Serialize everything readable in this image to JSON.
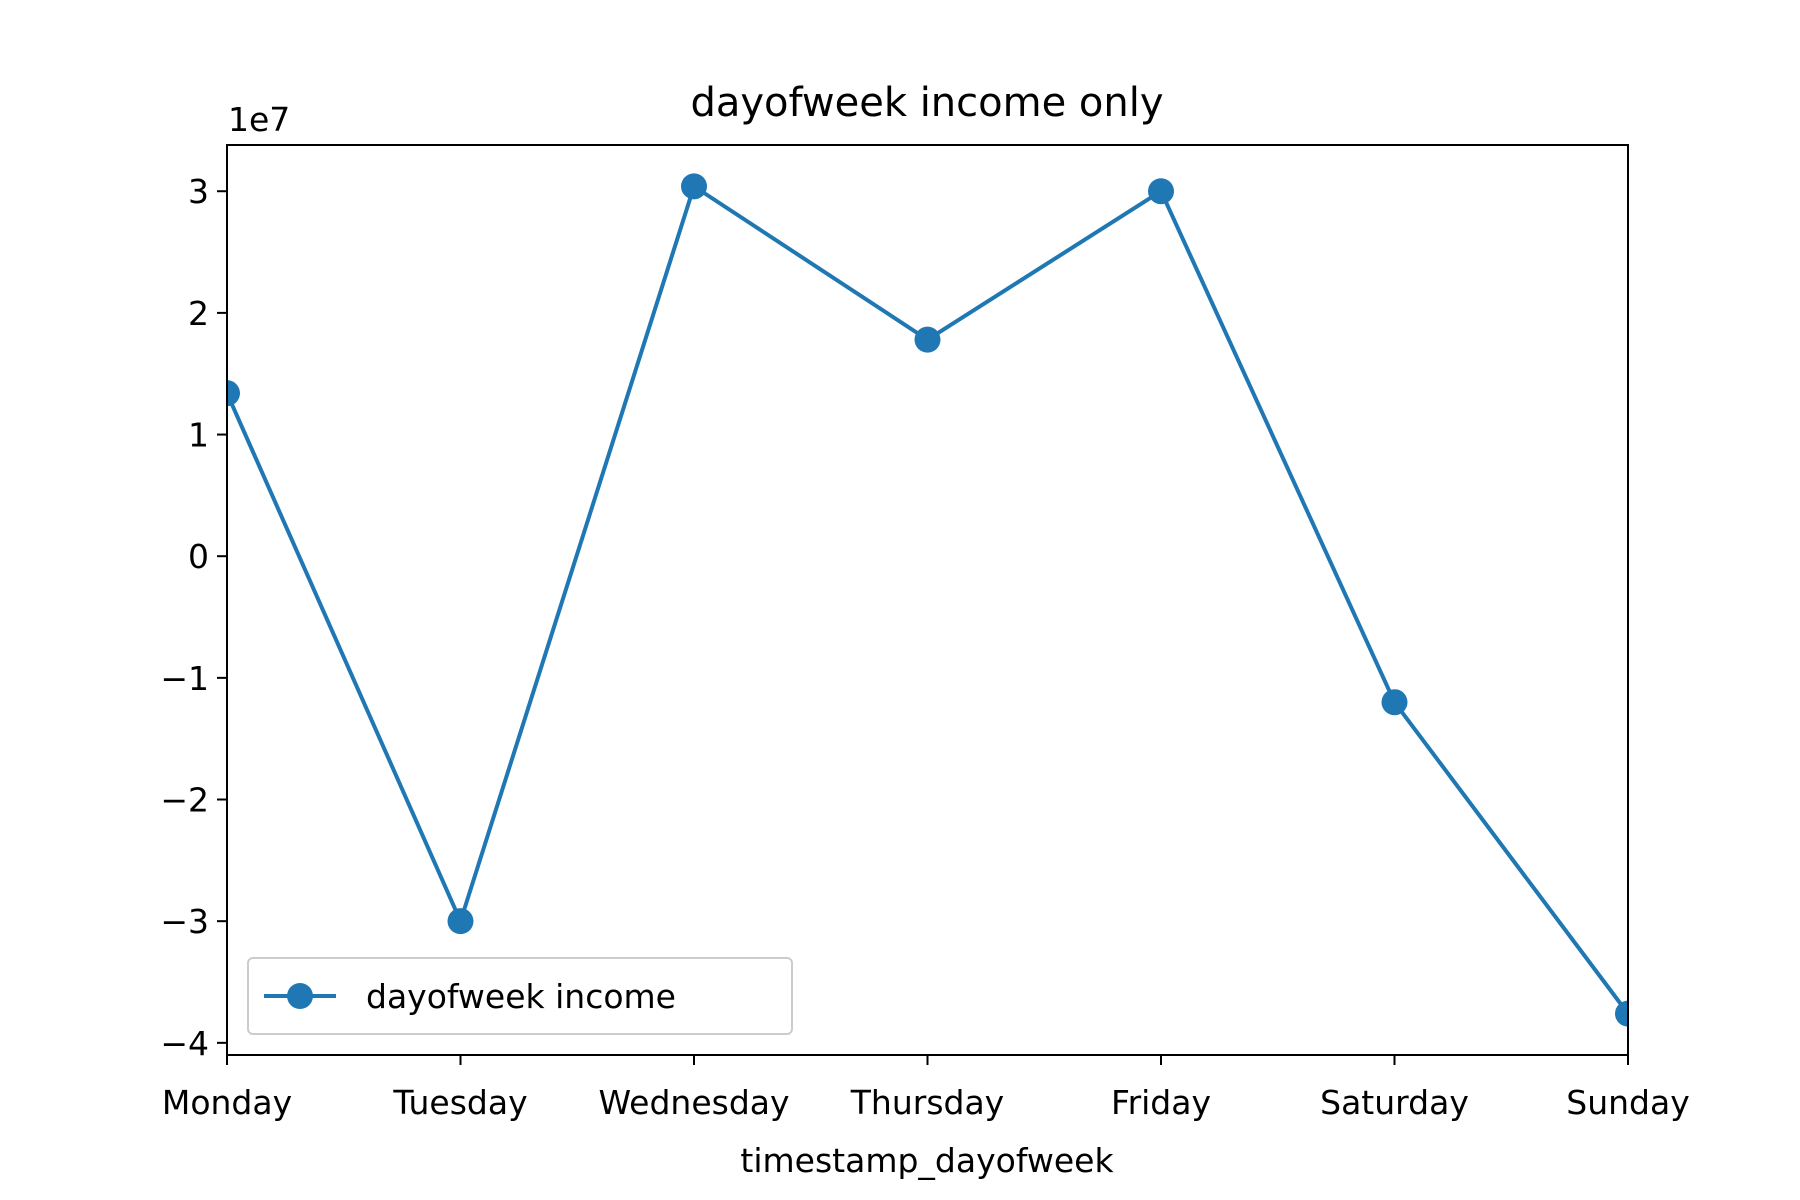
{
  "chart_data": {
    "type": "line",
    "title": "dayofweek income only",
    "xlabel": "timestamp_dayofweek",
    "ylabel": "",
    "y_offset_label": "1e7",
    "categories": [
      "Monday",
      "Tuesday",
      "Wednesday",
      "Thursday",
      "Friday",
      "Saturday",
      "Sunday"
    ],
    "series": [
      {
        "name": "dayofweek income",
        "values": [
          13400000,
          -30000000,
          30400000,
          17800000,
          30000000,
          -12000000,
          -37600000
        ],
        "color": "#1f77b4"
      }
    ],
    "ylim": [
      -41000000,
      33800000
    ],
    "yticks": [
      -40000000,
      -30000000,
      -20000000,
      -10000000,
      0,
      10000000,
      20000000,
      30000000
    ],
    "ytick_labels": [
      "−4",
      "−3",
      "−2",
      "−1",
      "0",
      "1",
      "2",
      "3"
    ],
    "grid": false,
    "legend_position": "lower-left"
  }
}
